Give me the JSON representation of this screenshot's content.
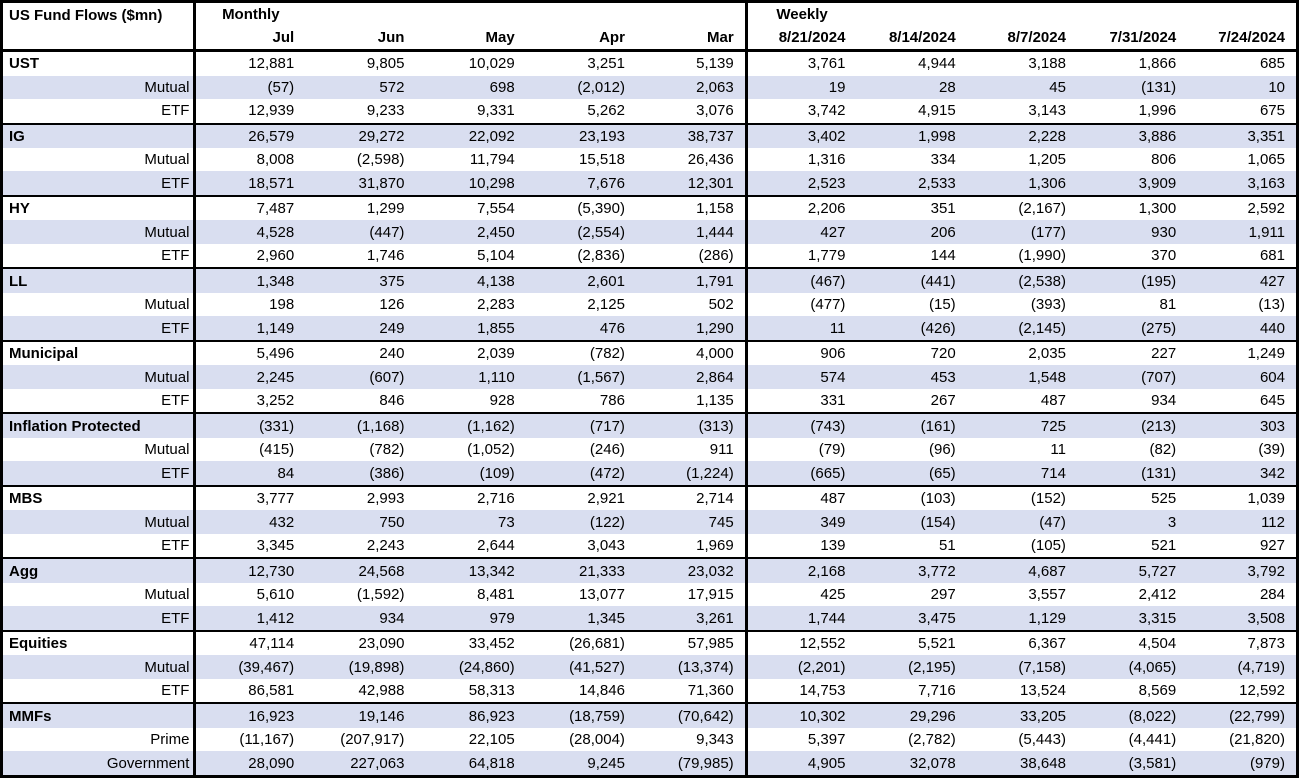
{
  "colors": {
    "row_shade": "#D9DEF0",
    "border": "#000000",
    "text": "#000000",
    "background": "#FFFFFF"
  },
  "chart_data": {
    "type": "table",
    "title": "US Fund Flows ($mn)",
    "column_groups": [
      {
        "label": "Monthly",
        "columns": [
          "Jul",
          "Jun",
          "May",
          "Apr",
          "Mar"
        ]
      },
      {
        "label": "Weekly",
        "columns": [
          "8/21/2024",
          "8/14/2024",
          "8/7/2024",
          "7/31/2024",
          "7/24/2024"
        ]
      }
    ],
    "rows": [
      {
        "label": "UST",
        "group_header": true,
        "values": [
          "12,881",
          "9,805",
          "10,029",
          "3,251",
          "5,139",
          "3,761",
          "4,944",
          "3,188",
          "1,866",
          "685"
        ]
      },
      {
        "label": "Mutual",
        "group_header": false,
        "values": [
          "(57)",
          "572",
          "698",
          "(2,012)",
          "2,063",
          "19",
          "28",
          "45",
          "(131)",
          "10"
        ]
      },
      {
        "label": "ETF",
        "group_header": false,
        "values": [
          "12,939",
          "9,233",
          "9,331",
          "5,262",
          "3,076",
          "3,742",
          "4,915",
          "3,143",
          "1,996",
          "675"
        ]
      },
      {
        "label": "IG",
        "group_header": true,
        "values": [
          "26,579",
          "29,272",
          "22,092",
          "23,193",
          "38,737",
          "3,402",
          "1,998",
          "2,228",
          "3,886",
          "3,351"
        ]
      },
      {
        "label": "Mutual",
        "group_header": false,
        "values": [
          "8,008",
          "(2,598)",
          "11,794",
          "15,518",
          "26,436",
          "1,316",
          "334",
          "1,205",
          "806",
          "1,065"
        ]
      },
      {
        "label": "ETF",
        "group_header": false,
        "values": [
          "18,571",
          "31,870",
          "10,298",
          "7,676",
          "12,301",
          "2,523",
          "2,533",
          "1,306",
          "3,909",
          "3,163"
        ]
      },
      {
        "label": "HY",
        "group_header": true,
        "values": [
          "7,487",
          "1,299",
          "7,554",
          "(5,390)",
          "1,158",
          "2,206",
          "351",
          "(2,167)",
          "1,300",
          "2,592"
        ]
      },
      {
        "label": "Mutual",
        "group_header": false,
        "values": [
          "4,528",
          "(447)",
          "2,450",
          "(2,554)",
          "1,444",
          "427",
          "206",
          "(177)",
          "930",
          "1,911"
        ]
      },
      {
        "label": "ETF",
        "group_header": false,
        "values": [
          "2,960",
          "1,746",
          "5,104",
          "(2,836)",
          "(286)",
          "1,779",
          "144",
          "(1,990)",
          "370",
          "681"
        ]
      },
      {
        "label": "LL",
        "group_header": true,
        "values": [
          "1,348",
          "375",
          "4,138",
          "2,601",
          "1,791",
          "(467)",
          "(441)",
          "(2,538)",
          "(195)",
          "427"
        ]
      },
      {
        "label": "Mutual",
        "group_header": false,
        "values": [
          "198",
          "126",
          "2,283",
          "2,125",
          "502",
          "(477)",
          "(15)",
          "(393)",
          "81",
          "(13)"
        ]
      },
      {
        "label": "ETF",
        "group_header": false,
        "values": [
          "1,149",
          "249",
          "1,855",
          "476",
          "1,290",
          "11",
          "(426)",
          "(2,145)",
          "(275)",
          "440"
        ]
      },
      {
        "label": "Municipal",
        "group_header": true,
        "values": [
          "5,496",
          "240",
          "2,039",
          "(782)",
          "4,000",
          "906",
          "720",
          "2,035",
          "227",
          "1,249"
        ]
      },
      {
        "label": "Mutual",
        "group_header": false,
        "values": [
          "2,245",
          "(607)",
          "1,110",
          "(1,567)",
          "2,864",
          "574",
          "453",
          "1,548",
          "(707)",
          "604"
        ]
      },
      {
        "label": "ETF",
        "group_header": false,
        "values": [
          "3,252",
          "846",
          "928",
          "786",
          "1,135",
          "331",
          "267",
          "487",
          "934",
          "645"
        ]
      },
      {
        "label": "Inflation Protected",
        "group_header": true,
        "values": [
          "(331)",
          "(1,168)",
          "(1,162)",
          "(717)",
          "(313)",
          "(743)",
          "(161)",
          "725",
          "(213)",
          "303"
        ]
      },
      {
        "label": "Mutual",
        "group_header": false,
        "values": [
          "(415)",
          "(782)",
          "(1,052)",
          "(246)",
          "911",
          "(79)",
          "(96)",
          "11",
          "(82)",
          "(39)"
        ]
      },
      {
        "label": "ETF",
        "group_header": false,
        "values": [
          "84",
          "(386)",
          "(109)",
          "(472)",
          "(1,224)",
          "(665)",
          "(65)",
          "714",
          "(131)",
          "342"
        ]
      },
      {
        "label": "MBS",
        "group_header": true,
        "values": [
          "3,777",
          "2,993",
          "2,716",
          "2,921",
          "2,714",
          "487",
          "(103)",
          "(152)",
          "525",
          "1,039"
        ]
      },
      {
        "label": "Mutual",
        "group_header": false,
        "values": [
          "432",
          "750",
          "73",
          "(122)",
          "745",
          "349",
          "(154)",
          "(47)",
          "3",
          "112"
        ]
      },
      {
        "label": "ETF",
        "group_header": false,
        "values": [
          "3,345",
          "2,243",
          "2,644",
          "3,043",
          "1,969",
          "139",
          "51",
          "(105)",
          "521",
          "927"
        ]
      },
      {
        "label": "Agg",
        "group_header": true,
        "values": [
          "12,730",
          "24,568",
          "13,342",
          "21,333",
          "23,032",
          "2,168",
          "3,772",
          "4,687",
          "5,727",
          "3,792"
        ]
      },
      {
        "label": "Mutual",
        "group_header": false,
        "values": [
          "5,610",
          "(1,592)",
          "8,481",
          "13,077",
          "17,915",
          "425",
          "297",
          "3,557",
          "2,412",
          "284"
        ]
      },
      {
        "label": "ETF",
        "group_header": false,
        "values": [
          "1,412",
          "934",
          "979",
          "1,345",
          "3,261",
          "1,744",
          "3,475",
          "1,129",
          "3,315",
          "3,508"
        ]
      },
      {
        "label": "Equities",
        "group_header": true,
        "values": [
          "47,114",
          "23,090",
          "33,452",
          "(26,681)",
          "57,985",
          "12,552",
          "5,521",
          "6,367",
          "4,504",
          "7,873"
        ]
      },
      {
        "label": "Mutual",
        "group_header": false,
        "values": [
          "(39,467)",
          "(19,898)",
          "(24,860)",
          "(41,527)",
          "(13,374)",
          "(2,201)",
          "(2,195)",
          "(7,158)",
          "(4,065)",
          "(4,719)"
        ]
      },
      {
        "label": "ETF",
        "group_header": false,
        "values": [
          "86,581",
          "42,988",
          "58,313",
          "14,846",
          "71,360",
          "14,753",
          "7,716",
          "13,524",
          "8,569",
          "12,592"
        ]
      },
      {
        "label": "MMFs",
        "group_header": true,
        "values": [
          "16,923",
          "19,146",
          "86,923",
          "(18,759)",
          "(70,642)",
          "10,302",
          "29,296",
          "33,205",
          "(8,022)",
          "(22,799)"
        ]
      },
      {
        "label": "Prime",
        "group_header": false,
        "values": [
          "(11,167)",
          "(207,917)",
          "22,105",
          "(28,004)",
          "9,343",
          "5,397",
          "(2,782)",
          "(5,443)",
          "(4,441)",
          "(21,820)"
        ]
      },
      {
        "label": "Government",
        "group_header": false,
        "values": [
          "28,090",
          "227,063",
          "64,818",
          "9,245",
          "(79,985)",
          "4,905",
          "32,078",
          "38,648",
          "(3,581)",
          "(979)"
        ]
      }
    ]
  }
}
